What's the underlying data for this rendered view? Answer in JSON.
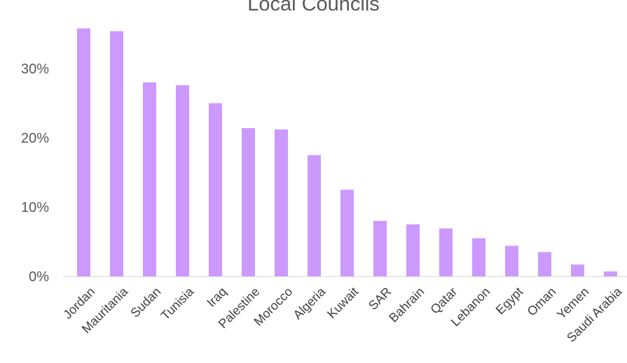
{
  "chart_data": {
    "type": "bar",
    "title": "Local Councils",
    "xlabel": "",
    "ylabel": "",
    "categories": [
      "Jordan",
      "Mauritania",
      "Sudan",
      "Tunisia",
      "Iraq",
      "Palestine",
      "Morocco",
      "Algeria",
      "Kuwait",
      "SAR",
      "Bahrain",
      "Qatar",
      "Lebanon",
      "Egypt",
      "Oman",
      "Yemen",
      "Saudi Arabia"
    ],
    "values": [
      35.8,
      35.4,
      28.0,
      27.6,
      25.0,
      21.4,
      21.2,
      17.5,
      12.5,
      8.0,
      7.5,
      6.9,
      5.5,
      4.4,
      3.5,
      1.7,
      0.7
    ],
    "ylim": [
      0,
      35
    ],
    "yticks": [
      "0%",
      "10%",
      "20%",
      "30%"
    ],
    "grid": false,
    "legend": "none",
    "colors": {
      "bar": "#cc99ff",
      "axis": "#d9d9d9",
      "text": "#595959"
    }
  }
}
